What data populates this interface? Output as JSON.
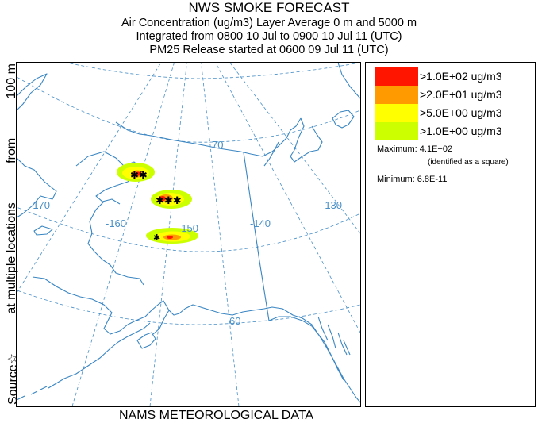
{
  "header": {
    "title": "NWS SMOKE FORECAST",
    "line2": "Air Concentration (ug/m3) Layer Average    0 m and  5000 m",
    "line3": "Integrated from 0800 10 Jul to 0900 10 Jul 11 (UTC)",
    "line4": "PM25 Release started at 0600 09 Jul 11 (UTC)"
  },
  "side_label": {
    "source": "Source☆",
    "locations": "at multiple locations",
    "from": "from",
    "height": "100 m"
  },
  "footer": {
    "data_label": "NAMS METEOROLOGICAL DATA"
  },
  "map": {
    "graticule_labels": {
      "lat70": "70",
      "lat60": "60",
      "lon_minus170": "-170",
      "lon_minus160": "-160",
      "lon_minus150": "-150",
      "lon_minus140": "-140",
      "lon_minus130": "-130"
    },
    "graticule_color": "#4a90c8",
    "coast_color": "#3a86c3"
  },
  "legend": {
    "bins": [
      {
        "label": ">1.0E+02 ug/m3",
        "color": "#ff1500"
      },
      {
        "label": ">2.0E+01 ug/m3",
        "color": "#ff9a00"
      },
      {
        "label": ">5.0E+00 ug/m3",
        "color": "#ffff00"
      },
      {
        "label": ">1.0E+00 ug/m3",
        "color": "#ccff00"
      }
    ],
    "maximum": "Maximum: 4.1E+02",
    "maximum_note": "(identified as a square)",
    "minimum": "Minimum: 6.8E-11"
  }
}
